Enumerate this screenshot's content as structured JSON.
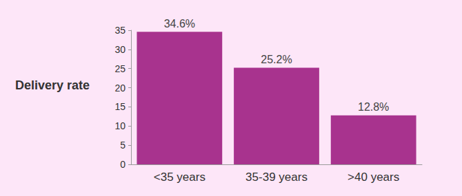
{
  "chart_data": {
    "type": "bar",
    "y_label": "Delivery rate",
    "categories": [
      "<35 years",
      "35-39 years",
      ">40 years"
    ],
    "values": [
      34.6,
      25.2,
      12.8
    ],
    "value_labels": [
      "34.6%",
      "25.2%",
      "12.8%"
    ],
    "data_labels": true,
    "color": "#a8338e",
    "ylim": [
      0,
      35
    ],
    "yticks": [
      0,
      5,
      10,
      15,
      20,
      25,
      30,
      35
    ],
    "grid": false
  }
}
